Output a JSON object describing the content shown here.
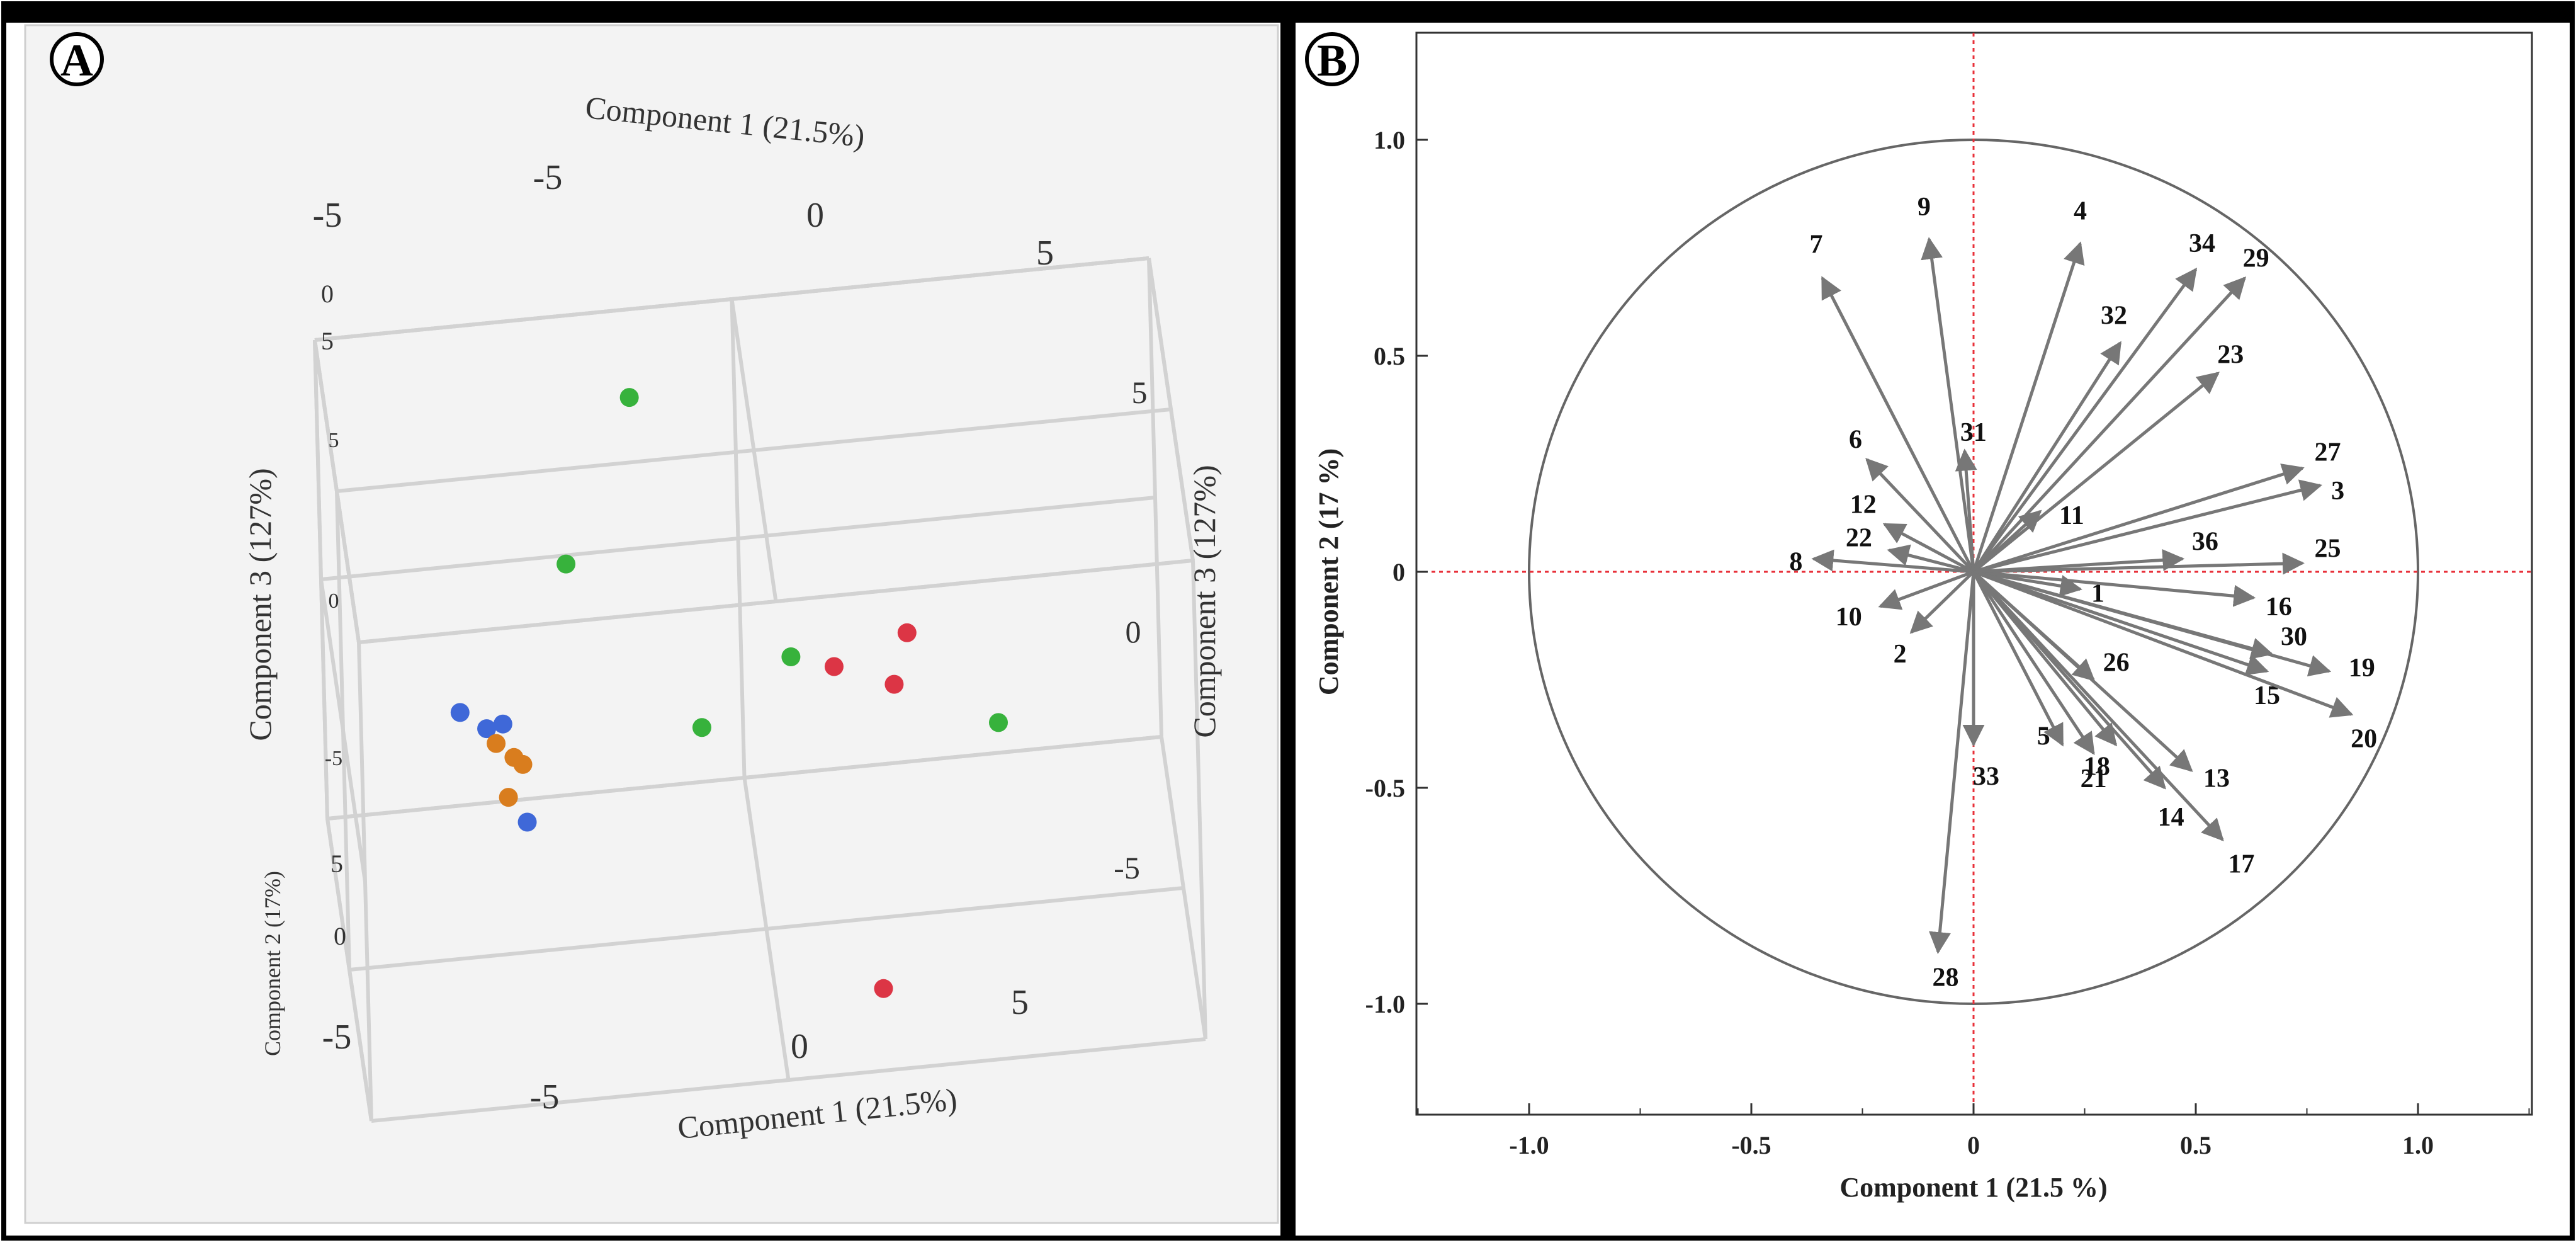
{
  "figure": {
    "panels": [
      {
        "label": "A"
      },
      {
        "label": "B"
      }
    ]
  },
  "chart_data": [
    {
      "type": "scatter",
      "subtype": "3d-scatter",
      "panel": "A",
      "axes": {
        "x": {
          "label": "Component 1 (21.5%)",
          "range": [
            -5,
            5
          ],
          "ticks": [
            "-5",
            "0",
            "5"
          ]
        },
        "y": {
          "label": "Component 2 (17%)",
          "range": [
            -5,
            5
          ],
          "ticks": [
            "5",
            "0",
            "-5"
          ]
        },
        "z": {
          "label": "Component 3 (127%)",
          "range": [
            -5,
            5
          ],
          "ticks": [
            "5",
            "0",
            "-5"
          ]
        }
      },
      "top_axis_label": "Component 1 (21.5%)",
      "top_ticks": [
        "-5",
        "0",
        "5"
      ],
      "left_top_ticks": [
        "-5",
        "0",
        "5"
      ],
      "right_ticks": [
        "5",
        "0",
        "-5"
      ],
      "right_axis_label": "Component 3 (127%)",
      "groups": [
        {
          "name": "blue",
          "color": "#3f68d8",
          "points": [
            [
              -3.6,
              -0.1,
              0.2
            ],
            [
              -3.3,
              -0.4,
              0.0
            ],
            [
              -3.1,
              -0.3,
              0.0
            ],
            [
              -2.9,
              -1.7,
              -1.2
            ]
          ]
        },
        {
          "name": "orange",
          "color": "#d97d1e",
          "points": [
            [
              -3.2,
              -0.6,
              -0.2
            ],
            [
              -3.0,
              -0.8,
              -0.4
            ],
            [
              -2.9,
              -0.9,
              -0.5
            ],
            [
              -3.1,
              -1.3,
              -0.9
            ]
          ]
        },
        {
          "name": "green",
          "color": "#37b23c",
          "points": [
            [
              -1.3,
              4.0,
              3.8
            ],
            [
              -2.2,
              1.9,
              1.8
            ],
            [
              -0.7,
              0.2,
              -0.8
            ],
            [
              0.4,
              0.5,
              0.3
            ],
            [
              2.8,
              -0.9,
              -0.6
            ]
          ]
        },
        {
          "name": "red",
          "color": "#dc3545",
          "points": [
            [
              0.9,
              0.2,
              0.2
            ],
            [
              1.6,
              -0.1,
              -0.1
            ],
            [
              1.8,
              0.6,
              0.5
            ],
            [
              1.2,
              -4.2,
              -3.8
            ]
          ]
        }
      ]
    },
    {
      "type": "scatter",
      "subtype": "loading-plot",
      "panel": "B",
      "title": "",
      "xlabel": "Component 1 (21.5 %)",
      "ylabel": "Component 2  (17 %)",
      "xlim": [
        -1.25,
        1.25
      ],
      "ylim": [
        -1.25,
        1.25
      ],
      "xticks": [
        "-1.0",
        "-0.5",
        "0",
        "0.5",
        "1.0"
      ],
      "yticks": [
        "1.0",
        "0.5",
        "0",
        "-0.5",
        "-1.0"
      ],
      "unit_circle": true,
      "reference_lines": {
        "x0": true,
        "y0": true,
        "color": "#e8303a"
      },
      "vectors": [
        {
          "id": "1",
          "x": 0.24,
          "y": -0.04
        },
        {
          "id": "2",
          "x": -0.14,
          "y": -0.14
        },
        {
          "id": "3",
          "x": 0.78,
          "y": 0.2
        },
        {
          "id": "4",
          "x": 0.24,
          "y": 0.76
        },
        {
          "id": "5",
          "x": 0.2,
          "y": -0.4
        },
        {
          "id": "6",
          "x": -0.24,
          "y": 0.26
        },
        {
          "id": "7",
          "x": -0.34,
          "y": 0.68
        },
        {
          "id": "8",
          "x": -0.36,
          "y": 0.03
        },
        {
          "id": "9",
          "x": -0.1,
          "y": 0.77
        },
        {
          "id": "10",
          "x": -0.21,
          "y": -0.08
        },
        {
          "id": "11",
          "x": 0.15,
          "y": 0.14
        },
        {
          "id": "12",
          "x": -0.2,
          "y": 0.11
        },
        {
          "id": "13",
          "x": 0.49,
          "y": -0.46
        },
        {
          "id": "14",
          "x": 0.43,
          "y": -0.5
        },
        {
          "id": "15",
          "x": 0.66,
          "y": -0.23
        },
        {
          "id": "16",
          "x": 0.63,
          "y": -0.06
        },
        {
          "id": "17",
          "x": 0.56,
          "y": -0.62
        },
        {
          "id": "18",
          "x": 0.32,
          "y": -0.4
        },
        {
          "id": "19",
          "x": 0.8,
          "y": -0.23
        },
        {
          "id": "20",
          "x": 0.85,
          "y": -0.33
        },
        {
          "id": "21",
          "x": 0.27,
          "y": -0.42
        },
        {
          "id": "22",
          "x": -0.19,
          "y": 0.05
        },
        {
          "id": "23",
          "x": 0.55,
          "y": 0.46
        },
        {
          "id": "25",
          "x": 0.74,
          "y": 0.02
        },
        {
          "id": "26",
          "x": 0.27,
          "y": -0.25
        },
        {
          "id": "27",
          "x": 0.74,
          "y": 0.24
        },
        {
          "id": "28",
          "x": -0.08,
          "y": -0.88
        },
        {
          "id": "29",
          "x": 0.61,
          "y": 0.68
        },
        {
          "id": "30",
          "x": 0.67,
          "y": -0.19
        },
        {
          "id": "31",
          "x": -0.02,
          "y": 0.28
        },
        {
          "id": "32",
          "x": 0.33,
          "y": 0.53
        },
        {
          "id": "33",
          "x": 0.0,
          "y": -0.4
        },
        {
          "id": "34",
          "x": 0.5,
          "y": 0.7
        },
        {
          "id": "36",
          "x": 0.47,
          "y": 0.03
        }
      ]
    }
  ]
}
